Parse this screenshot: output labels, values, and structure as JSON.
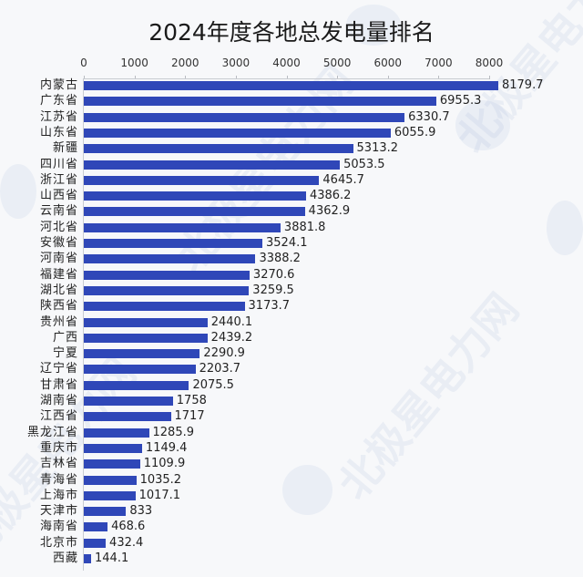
{
  "title": "2024年度各地总发电量排名",
  "colors": {
    "bar": "#2f47b8",
    "background": "#f7f8fa"
  },
  "watermark": "北极星电力网",
  "chart_data": {
    "type": "bar",
    "orientation": "horizontal",
    "title": "2024年度各地总发电量排名",
    "xlabel": "",
    "ylabel": "",
    "xlim": [
      0,
      8000
    ],
    "x_ticks": [
      0,
      1000,
      2000,
      3000,
      4000,
      5000,
      6000,
      7000,
      8000
    ],
    "axis_position": "top",
    "grid": false,
    "legend": null,
    "categories": [
      "内蒙古",
      "广东省",
      "江苏省",
      "山东省",
      "新疆",
      "四川省",
      "浙江省",
      "山西省",
      "云南省",
      "河北省",
      "安徽省",
      "河南省",
      "福建省",
      "湖北省",
      "陕西省",
      "贵州省",
      "广西",
      "宁夏",
      "辽宁省",
      "甘肃省",
      "湖南省",
      "江西省",
      "黑龙江省",
      "重庆市",
      "吉林省",
      "青海省",
      "上海市",
      "天津市",
      "海南省",
      "北京市",
      "西藏"
    ],
    "values": [
      8179.7,
      6955.3,
      6330.7,
      6055.9,
      5313.2,
      5053.5,
      4645.7,
      4386.2,
      4362.9,
      3881.8,
      3524.1,
      3388.2,
      3270.6,
      3259.5,
      3173.7,
      2440.1,
      2439.2,
      2290.9,
      2203.7,
      2075.5,
      1758,
      1717,
      1285.9,
      1149.4,
      1109.9,
      1035.2,
      1017.1,
      833,
      468.6,
      432.4,
      144.1
    ],
    "value_labels": [
      "8179.7",
      "6955.3",
      "6330.7",
      "6055.9",
      "5313.2",
      "5053.5",
      "4645.7",
      "4386.2",
      "4362.9",
      "3881.8",
      "3524.1",
      "3388.2",
      "3270.6",
      "3259.5",
      "3173.7",
      "2440.1",
      "2439.2",
      "2290.9",
      "2203.7",
      "2075.5",
      "1758",
      "1717",
      "1285.9",
      "1149.4",
      "1109.9",
      "1035.2",
      "1017.1",
      "833",
      "468.6",
      "432.4",
      "144.1"
    ]
  }
}
